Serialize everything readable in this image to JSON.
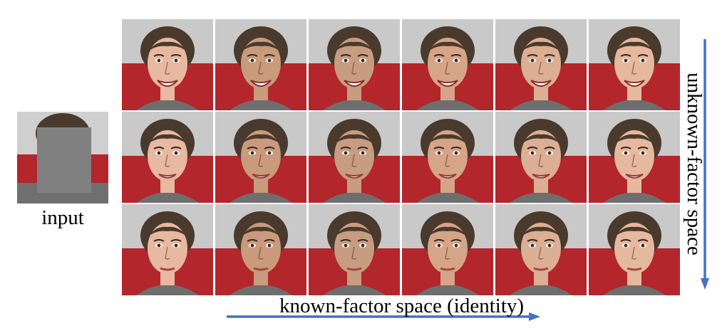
{
  "input_label": "input",
  "x_axis_label": "known-factor space (identity)",
  "y_axis_label": "unknown-factor space",
  "colors": {
    "arrow": "#4472c4",
    "mask": "#808080",
    "background_red": "#b3262b",
    "background_grey": "#c9c9c9"
  },
  "grid": {
    "columns": 6,
    "rows": 3,
    "column_skin_tones": [
      "#e8b8a0",
      "#c99a7c",
      "#c89c80",
      "#d6a488",
      "#dcae94",
      "#e6b89e"
    ],
    "row_expression": [
      "big-smile",
      "smile",
      "neutral"
    ]
  }
}
